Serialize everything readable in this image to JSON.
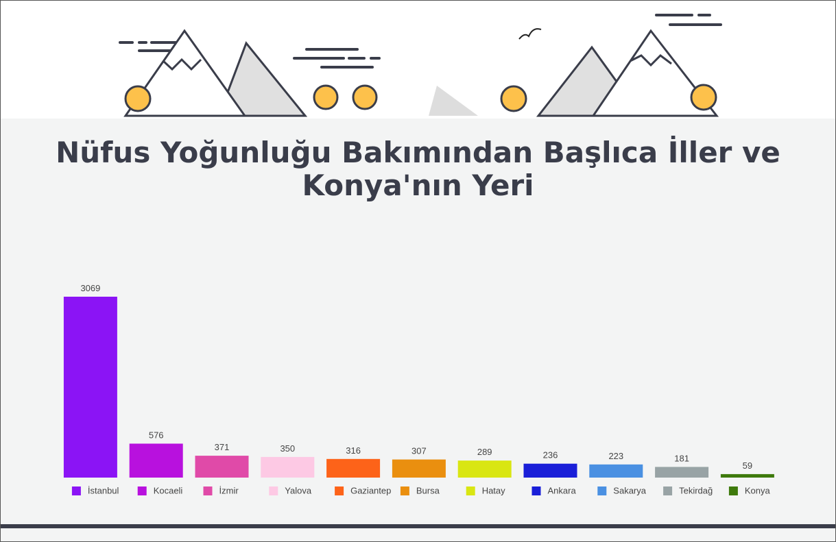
{
  "chart_data": {
    "type": "bar",
    "title": "Nüfus Yoğunluğu Bakımından Başlıca İller ve Konya'nın Yeri",
    "categories": [
      "İstanbul",
      "Kocaeli",
      "İzmir",
      "Yalova",
      "Gaziantep",
      "Bursa",
      "Hatay",
      "Ankara",
      "Sakarya",
      "Tekirdağ",
      "Konya"
    ],
    "values": [
      3069,
      576,
      371,
      350,
      316,
      307,
      289,
      236,
      223,
      181,
      59
    ],
    "colors": [
      "#8b14f5",
      "#b811de",
      "#e04aa8",
      "#fdc9e4",
      "#fd6319",
      "#ea8f0f",
      "#d9e612",
      "#1a1fd8",
      "#4a90e2",
      "#98a3a5",
      "#3e7a0c"
    ],
    "ylim": [
      0,
      3069
    ]
  }
}
